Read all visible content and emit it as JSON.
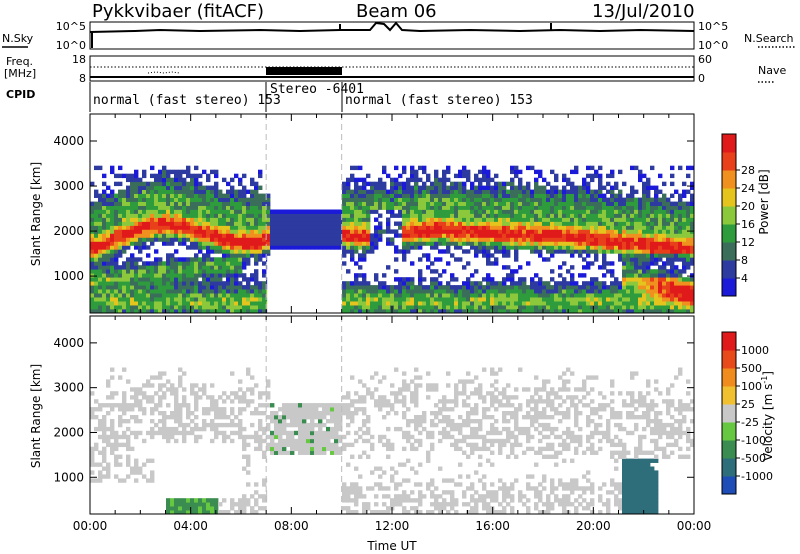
{
  "header": {
    "title": "Pykkvibaer (fitACF)",
    "beam": "Beam 06",
    "date": "13/Jul/2010"
  },
  "top_panels": {
    "nsky_label": "N.Sky",
    "nsky_ticks": [
      "10^5",
      "10^0"
    ],
    "nsearch_label": "N.Search",
    "nsearch_ticks": [
      "10^5",
      "10^0"
    ],
    "freq_label": "Freq.",
    "freq_unit": "[MHz]",
    "freq_ticks": [
      "18",
      "8"
    ],
    "nave_label": "Nave",
    "nave_ticks": [
      "60",
      "0"
    ],
    "cpid_label": "CPID",
    "cpid_segments": [
      {
        "label": "normal (fast stereo) 153",
        "start_h": 0,
        "end_h": 7
      },
      {
        "label": "Stereo -6401",
        "start_h": 7,
        "end_h": 10
      },
      {
        "label": "normal (fast stereo) 153",
        "start_h": 10,
        "end_h": 24
      }
    ]
  },
  "chart_data": [
    {
      "type": "heatmap",
      "panel": "power",
      "ylabel": "Slant Range [km]",
      "y_ticks": [
        "1000",
        "2000",
        "3000",
        "4000"
      ],
      "ylim": [
        180,
        4600
      ],
      "xlim": [
        0,
        24
      ],
      "x_ticks": [
        "00:00",
        "04:00",
        "08:00",
        "12:00",
        "16:00",
        "20:00",
        "00:00"
      ],
      "colorbar": {
        "label": "Power [dB]",
        "ticks": [
          "4",
          "8",
          "12",
          "16",
          "20",
          "24",
          "28"
        ],
        "range": [
          0,
          30
        ],
        "colors": [
          "#1a1ad8",
          "#2d3aa0",
          "#3a6e5a",
          "#2e9c3c",
          "#8cc83c",
          "#e6c41e",
          "#f0901e",
          "#e8401a",
          "#e01a1a"
        ]
      },
      "data_gap_hours": [
        7,
        10
      ],
      "stereo_gap_below_km": 1450
    },
    {
      "type": "heatmap",
      "panel": "velocity",
      "ylabel": "Slant Range [km]",
      "y_ticks": [
        "1000",
        "2000",
        "3000",
        "4000"
      ],
      "ylim": [
        180,
        4600
      ],
      "xlim": [
        0,
        24
      ],
      "x_ticks": [
        "00:00",
        "04:00",
        "08:00",
        "12:00",
        "16:00",
        "20:00",
        "00:00"
      ],
      "xlabel": "Time UT",
      "colorbar": {
        "label": "Velocity [m s",
        "label_sup": "-1",
        "label_close": "]",
        "ticks": [
          "1000",
          "500",
          "100",
          "25",
          "-25",
          "-100",
          "-500",
          "-1000"
        ],
        "colors": [
          "#1e4db8",
          "#2e6e7a",
          "#3a8c50",
          "#66c840",
          "#c8c8c8",
          "#f0c030",
          "#f08c1e",
          "#e84a1a",
          "#e01a1a"
        ]
      },
      "data_gap_hours": [
        7,
        10
      ],
      "stereo_gap_below_km": 1450
    }
  ]
}
